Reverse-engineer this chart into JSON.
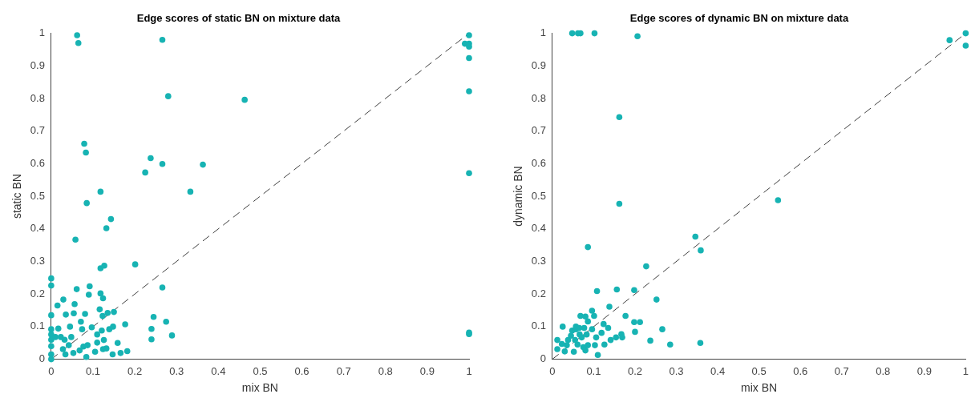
{
  "chart_data": [
    {
      "type": "scatter",
      "title": "Edge scores of static BN on mixture data",
      "xlabel": "mix BN",
      "ylabel": "static BN",
      "xlim": [
        0,
        1
      ],
      "ylim": [
        0,
        1
      ],
      "xticks": [
        0,
        0.1,
        0.2,
        0.3,
        0.4,
        0.5,
        0.6,
        0.7,
        0.8,
        0.9,
        1
      ],
      "yticks": [
        0,
        0.1,
        0.2,
        0.3,
        0.4,
        0.5,
        0.6,
        0.7,
        0.8,
        0.9,
        1
      ],
      "grid": false,
      "legend": false,
      "marker": "circle",
      "series": [
        {
          "type": "scatter",
          "color": "#17b3b3",
          "x": [
            0,
            0,
            0,
            0,
            0,
            0,
            0,
            0,
            0,
            0.015,
            0.029,
            0.017,
            0.01,
            0.023,
            0.032,
            0.035,
            0.028,
            0.034,
            0.045,
            0.048,
            0.042,
            0.054,
            0.056,
            0.061,
            0.058,
            0.071,
            0.081,
            0.074,
            0.09,
            0.092,
            0.097,
            0.077,
            0.068,
            0.053,
            0.087,
            0.084,
            0.116,
            0.118,
            0.124,
            0.118,
            0.127,
            0.132,
            0.11,
            0.11,
            0.105,
            0.121,
            0.126,
            0.124,
            0.132,
            0.135,
            0.139,
            0.148,
            0.15,
            0.123,
            0.147,
            0.159,
            0.166,
            0.177,
            0.182,
            0.201,
            0.24,
            0.24,
            0.245,
            0.266,
            0.275,
            0.289,
            1,
            1,
            0.062,
            0.065,
            0.266,
            0.28,
            0.463,
            0.079,
            0.083,
            0.118,
            0.085,
            0.143,
            0.225,
            0.238,
            0.266,
            0.333,
            0.363,
            1,
            0.99,
            1,
            1,
            1,
            1,
            1
          ],
          "values": [
            0.248,
            0.226,
            0.135,
            0.092,
            0.076,
            0.06,
            0.04,
            0.015,
            0,
            0.165,
            0.183,
            0.094,
            0.068,
            0.068,
            0.06,
            0.137,
            0.031,
            0.015,
            0.1,
            0.068,
            0.043,
            0.141,
            0.169,
            0.215,
            0.367,
            0.115,
            0.139,
            0.092,
            0.198,
            0.224,
            0.098,
            0.039,
            0.027,
            0.019,
            0.043,
            0.007,
            0.153,
            0.202,
            0.187,
            0.279,
            0.287,
            0.402,
            0.076,
            0.051,
            0.023,
            0.088,
            0.059,
            0.031,
            0.033,
            0.142,
            0.092,
            0.1,
            0.145,
            0.133,
            0.015,
            0.05,
            0.019,
            0.107,
            0.025,
            0.291,
            0.093,
            0.061,
            0.13,
            0.22,
            0.115,
            0.073,
            0.082,
            0.077,
            0.994,
            0.97,
            0.98,
            0.807,
            0.796,
            0.661,
            0.634,
            0.514,
            0.479,
            0.43,
            0.573,
            0.617,
            0.599,
            0.514,
            0.597,
            0.994,
            0.968,
            0.968,
            0.959,
            0.924,
            0.822,
            0.571
          ]
        },
        {
          "type": "line",
          "color": "#404040",
          "x": [
            0,
            1
          ],
          "values": [
            0,
            1
          ],
          "line_style": "dashed",
          "marker": "none"
        }
      ]
    },
    {
      "type": "scatter",
      "title": "Edge scores of dynamic BN on mixture data",
      "xlabel": "mix BN",
      "ylabel": "dynamic BN",
      "xlim": [
        0,
        1
      ],
      "ylim": [
        0,
        1
      ],
      "xticks": [
        0,
        0.1,
        0.2,
        0.3,
        0.4,
        0.5,
        0.6,
        0.7,
        0.8,
        0.9,
        1
      ],
      "yticks": [
        0,
        0.1,
        0.2,
        0.3,
        0.4,
        0.5,
        0.6,
        0.7,
        0.8,
        0.9,
        1
      ],
      "grid": false,
      "legend": false,
      "marker": "circle",
      "series": [
        {
          "type": "scatter",
          "color": "#17b3b3",
          "x": [
            0.086,
            0.227,
            0.346,
            0.359,
            0.108,
            0.156,
            0.198,
            0.252,
            0.138,
            0.177,
            0.198,
            0.212,
            0.2,
            0.266,
            0.237,
            0.285,
            0.358,
            0.167,
            0.169,
            0.154,
            0.141,
            0.126,
            0.124,
            0.119,
            0.135,
            0.11,
            0.106,
            0.096,
            0.101,
            0.086,
            0.068,
            0.08,
            0.077,
            0.083,
            0.08,
            0.075,
            0.086,
            0.025,
            0.012,
            0.012,
            0.03,
            0.038,
            0.048,
            0.057,
            0.045,
            0.055,
            0.052,
            0.061,
            0.066,
            0.057,
            0.035,
            0.071,
            0.096,
            0.103,
            0.023,
            0.065,
            0.048,
            0.062,
            0.068,
            0.102,
            0.206,
            0.162,
            0.162,
            0.546,
            0.961,
            1,
            1
          ],
          "values": [
            0.344,
            0.285,
            0.376,
            0.334,
            0.209,
            0.214,
            0.212,
            0.183,
            0.161,
            0.133,
            0.114,
            0.114,
            0.084,
            0.092,
            0.057,
            0.045,
            0.05,
            0.077,
            0.067,
            0.067,
            0.059,
            0.045,
            0.108,
            0.081,
            0.096,
            0.013,
            0.067,
            0.149,
            0.133,
            0.116,
            0.133,
            0.131,
            0.096,
            0.076,
            0.027,
            0.037,
            0.043,
            0.1,
            0.059,
            0.031,
            0.024,
            0.059,
            0.088,
            0.092,
            0.072,
            0.059,
            0.023,
            0.045,
            0.076,
            0.1,
            0.043,
            0.067,
            0.092,
            0.043,
            0.047,
            0.096,
            1,
            1,
            1,
            1,
            0.991,
            0.743,
            0.477,
            0.488,
            0.979,
            1,
            0.962
          ]
        },
        {
          "type": "line",
          "color": "#404040",
          "x": [
            0,
            1
          ],
          "values": [
            0,
            1
          ],
          "line_style": "dashed",
          "marker": "none"
        }
      ]
    }
  ]
}
